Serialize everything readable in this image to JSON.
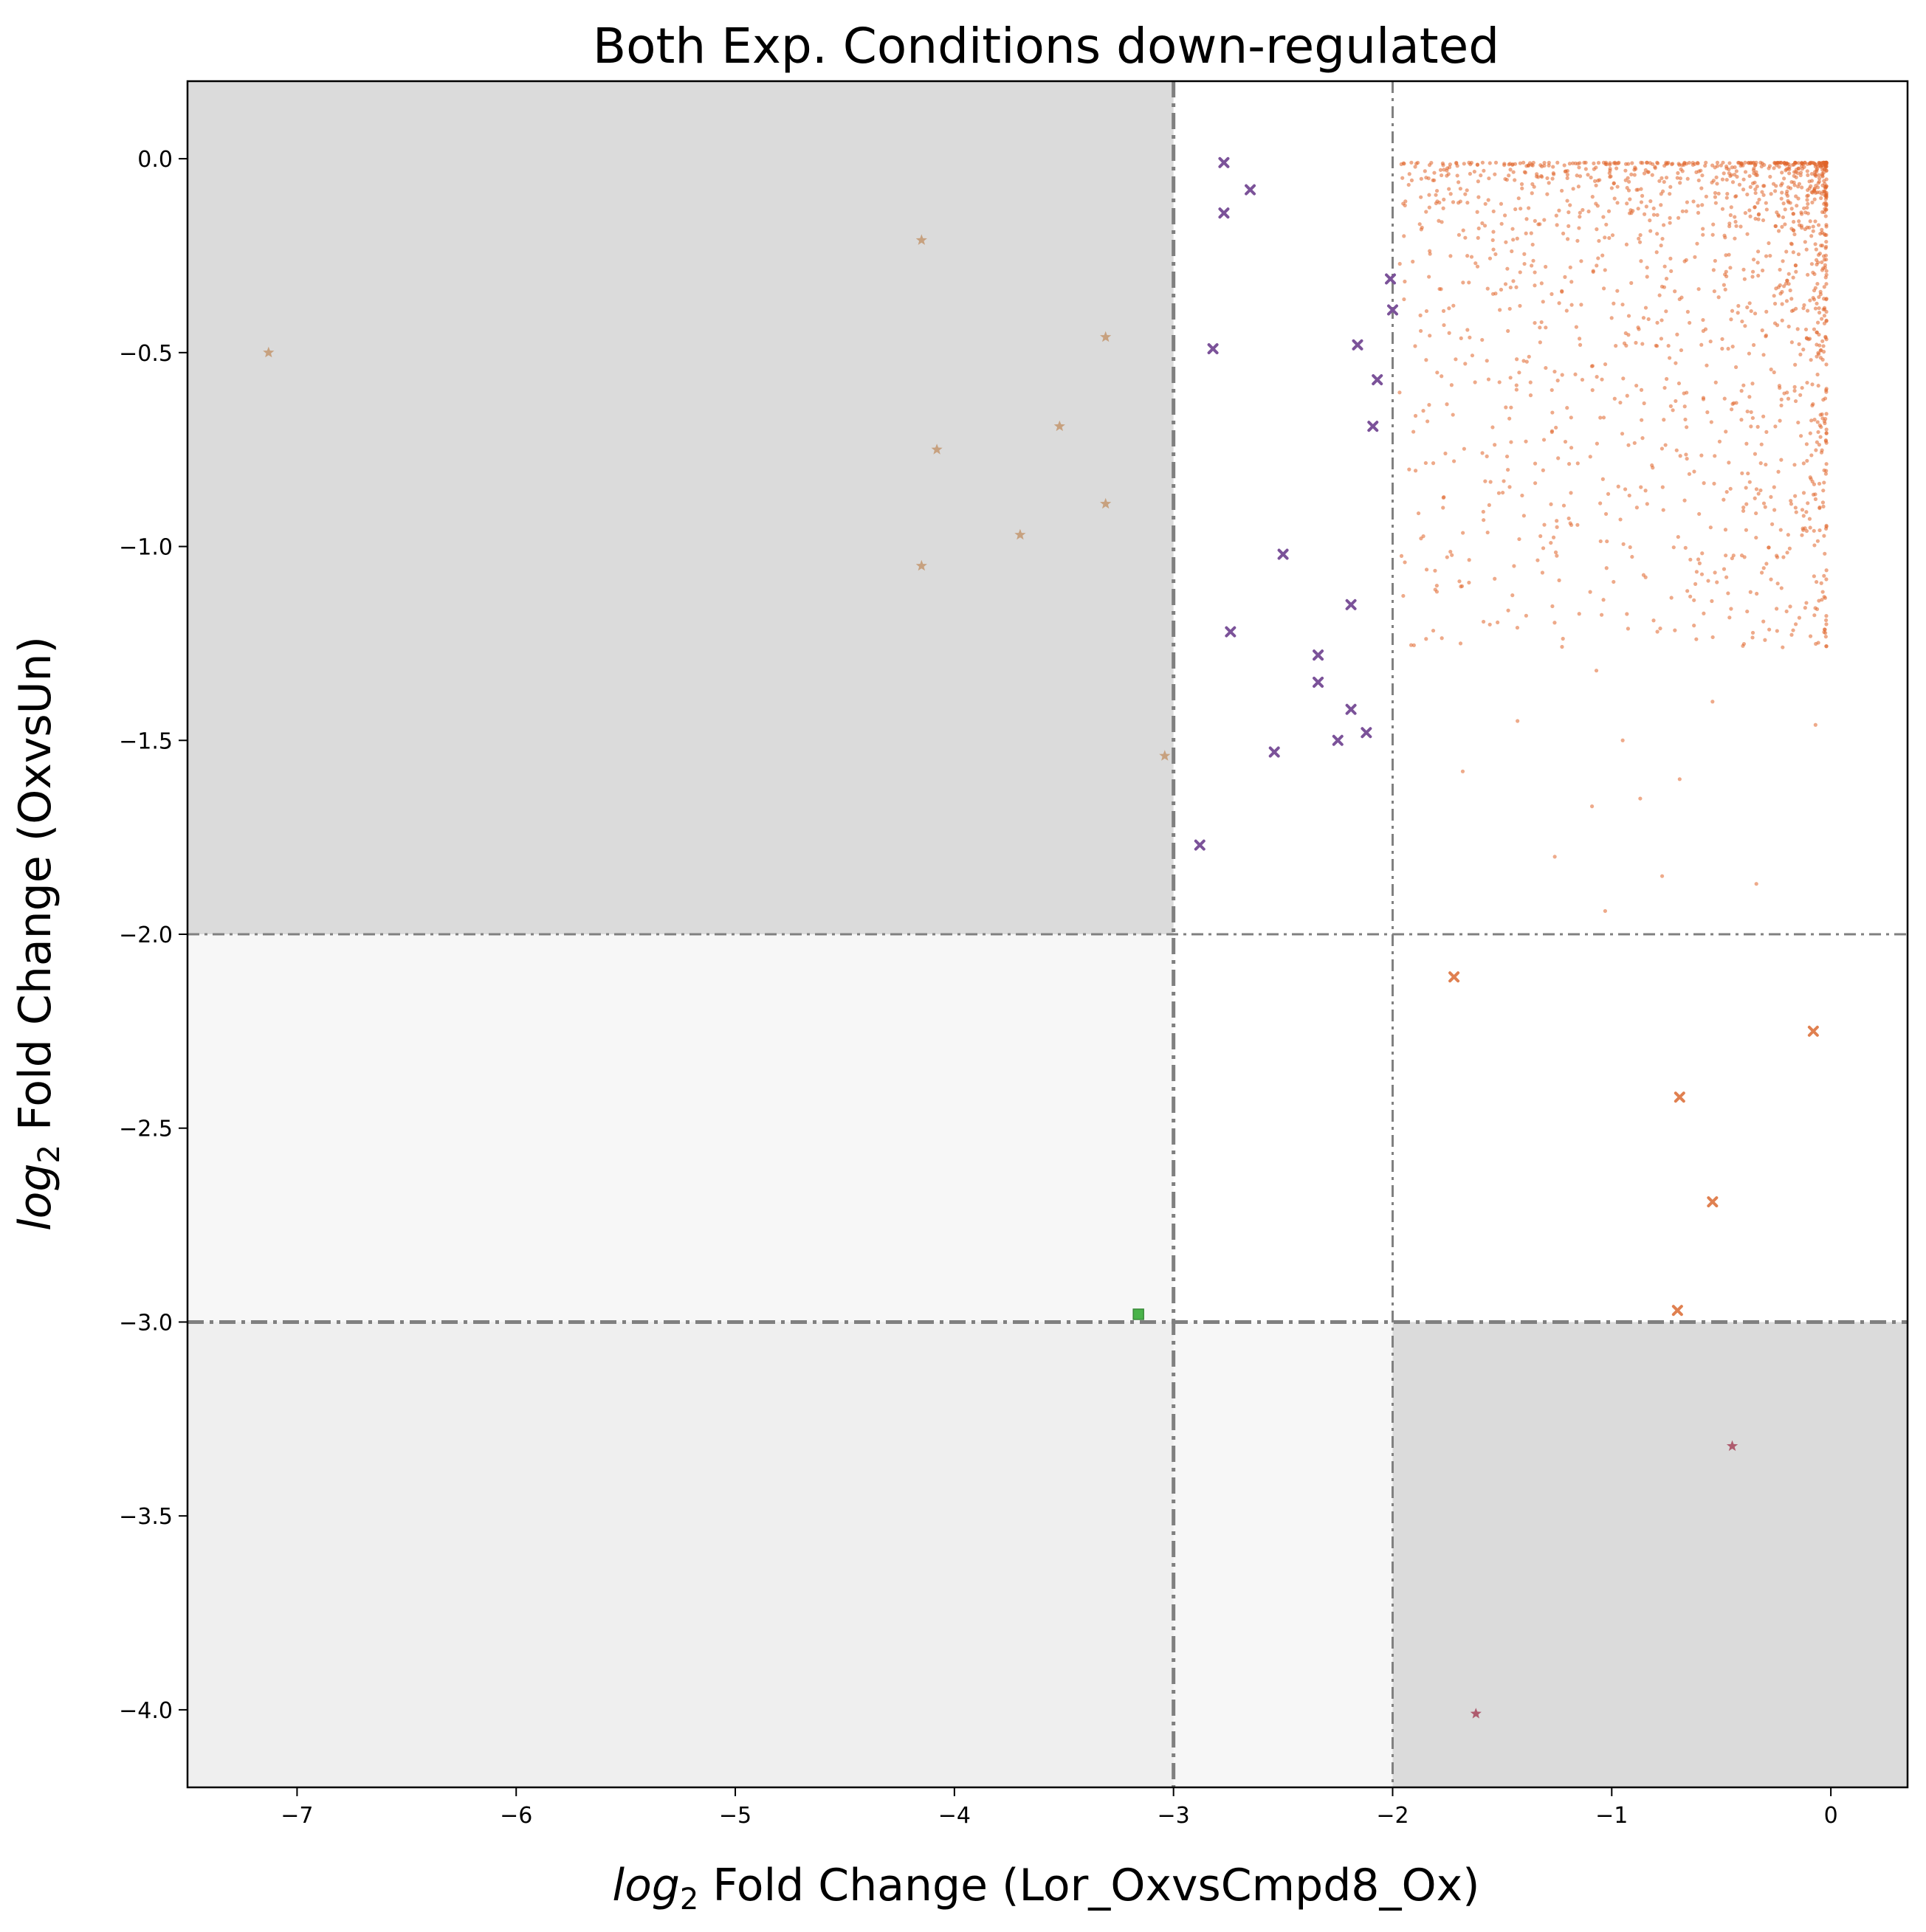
{
  "chart_data": {
    "type": "scatter",
    "title": "Both Exp. Conditions down-regulated",
    "xlabel_italic": "log",
    "xlabel_sub": "2",
    "xlabel_rest": " Fold Change (Lor_OxvsCmpd8_Ox)",
    "ylabel_italic": "log",
    "ylabel_sub": "2",
    "ylabel_rest": " Fold Change (OxvsUn)",
    "xlim": [
      -7.5,
      0.35
    ],
    "ylim": [
      -4.2,
      0.2
    ],
    "x_ticks": [
      -7,
      -6,
      -5,
      -4,
      -3,
      -2,
      -1,
      0
    ],
    "x_tick_labels": [
      "−7",
      "−6",
      "−5",
      "−4",
      "−3",
      "−2",
      "−1",
      "0"
    ],
    "y_ticks": [
      0.0,
      -0.5,
      -1.0,
      -1.5,
      -2.0,
      -2.5,
      -3.0,
      -3.5,
      -4.0
    ],
    "y_tick_labels": [
      "0.0",
      "−0.5",
      "−1.0",
      "−1.5",
      "−2.0",
      "−2.5",
      "−3.0",
      "−3.5",
      "−4.0"
    ],
    "grid": false,
    "regions": [
      {
        "x": [
          -7.5,
          -3
        ],
        "y": [
          -2,
          0.2
        ],
        "color": "#dbdbdb"
      },
      {
        "x": [
          -7.5,
          -3
        ],
        "y": [
          -3,
          -2
        ],
        "color": "#f7f7f7"
      },
      {
        "x": [
          -3,
          -2
        ],
        "y": [
          -4.2,
          -3
        ],
        "color": "#f7f7f7"
      },
      {
        "x": [
          -7.5,
          -3
        ],
        "y": [
          -4.2,
          -3
        ],
        "color": "#efefef"
      },
      {
        "x": [
          -2,
          0.35
        ],
        "y": [
          -4.2,
          -3
        ],
        "color": "#dbdbdb"
      }
    ],
    "threshold_lines": [
      {
        "orientation": "vertical",
        "value": -3,
        "weight": "heavy"
      },
      {
        "orientation": "vertical",
        "value": -2,
        "weight": "light"
      },
      {
        "orientation": "horizontal",
        "value": -2,
        "weight": "light"
      },
      {
        "orientation": "horizontal",
        "value": -3,
        "weight": "heavy"
      }
    ],
    "series": [
      {
        "marker": "star",
        "color": "#c49a74",
        "points": [
          [
            -7.13,
            -0.5
          ],
          [
            -4.15,
            -0.21
          ],
          [
            -4.08,
            -0.75
          ],
          [
            -3.52,
            -0.69
          ],
          [
            -3.31,
            -0.46
          ],
          [
            -3.31,
            -0.89
          ],
          [
            -3.7,
            -0.97
          ],
          [
            -4.15,
            -1.05
          ],
          [
            -3.04,
            -1.54
          ]
        ]
      },
      {
        "marker": "x",
        "color": "#7b5299",
        "points": [
          [
            -2.77,
            -0.01
          ],
          [
            -2.65,
            -0.08
          ],
          [
            -2.77,
            -0.14
          ],
          [
            -2.82,
            -0.49
          ],
          [
            -2.01,
            -0.31
          ],
          [
            -2.0,
            -0.39
          ],
          [
            -2.16,
            -0.48
          ],
          [
            -2.07,
            -0.57
          ],
          [
            -2.09,
            -0.69
          ],
          [
            -2.5,
            -1.02
          ],
          [
            -2.74,
            -1.22
          ],
          [
            -2.19,
            -1.15
          ],
          [
            -2.34,
            -1.28
          ],
          [
            -2.34,
            -1.35
          ],
          [
            -2.19,
            -1.42
          ],
          [
            -2.12,
            -1.48
          ],
          [
            -2.25,
            -1.5
          ],
          [
            -2.54,
            -1.53
          ],
          [
            -2.88,
            -1.77
          ]
        ]
      },
      {
        "marker": "x",
        "color": "#e08050",
        "points": [
          [
            -1.72,
            -2.11
          ],
          [
            -0.08,
            -2.25
          ],
          [
            -0.69,
            -2.42
          ],
          [
            -0.54,
            -2.69
          ],
          [
            -0.7,
            -2.97
          ]
        ]
      },
      {
        "marker": "square",
        "color": "#4ab34a",
        "points": [
          [
            -3.16,
            -2.98
          ]
        ]
      },
      {
        "marker": "star",
        "color": "#a84d62",
        "points": [
          [
            -0.45,
            -3.32
          ],
          [
            -1.62,
            -4.01
          ]
        ]
      },
      {
        "marker": "dot",
        "color": "#e0642a",
        "generated_count": 1500,
        "points": [
          [
            -1.86,
            -0.65
          ],
          [
            -1.72,
            -0.78
          ],
          [
            -1.25,
            -0.95
          ],
          [
            -1.77,
            -0.9
          ],
          [
            -1.09,
            -1.67
          ],
          [
            -0.54,
            -1.4
          ],
          [
            -1.26,
            -1.8
          ],
          [
            -0.87,
            -1.65
          ],
          [
            -1.03,
            -1.94
          ],
          [
            -0.34,
            -1.87
          ],
          [
            -0.77,
            -1.85
          ],
          [
            -1.68,
            -1.58
          ],
          [
            -0.69,
            -1.6
          ],
          [
            -0.07,
            -1.46
          ],
          [
            -0.22,
            -1.26
          ],
          [
            -1.43,
            -1.45
          ],
          [
            -1.07,
            -1.32
          ],
          [
            -0.95,
            -1.5
          ],
          [
            -1.69,
            -1.25
          ],
          [
            -1.37,
            -0.61
          ],
          [
            -0.11,
            -0.96
          ]
        ]
      }
    ]
  }
}
